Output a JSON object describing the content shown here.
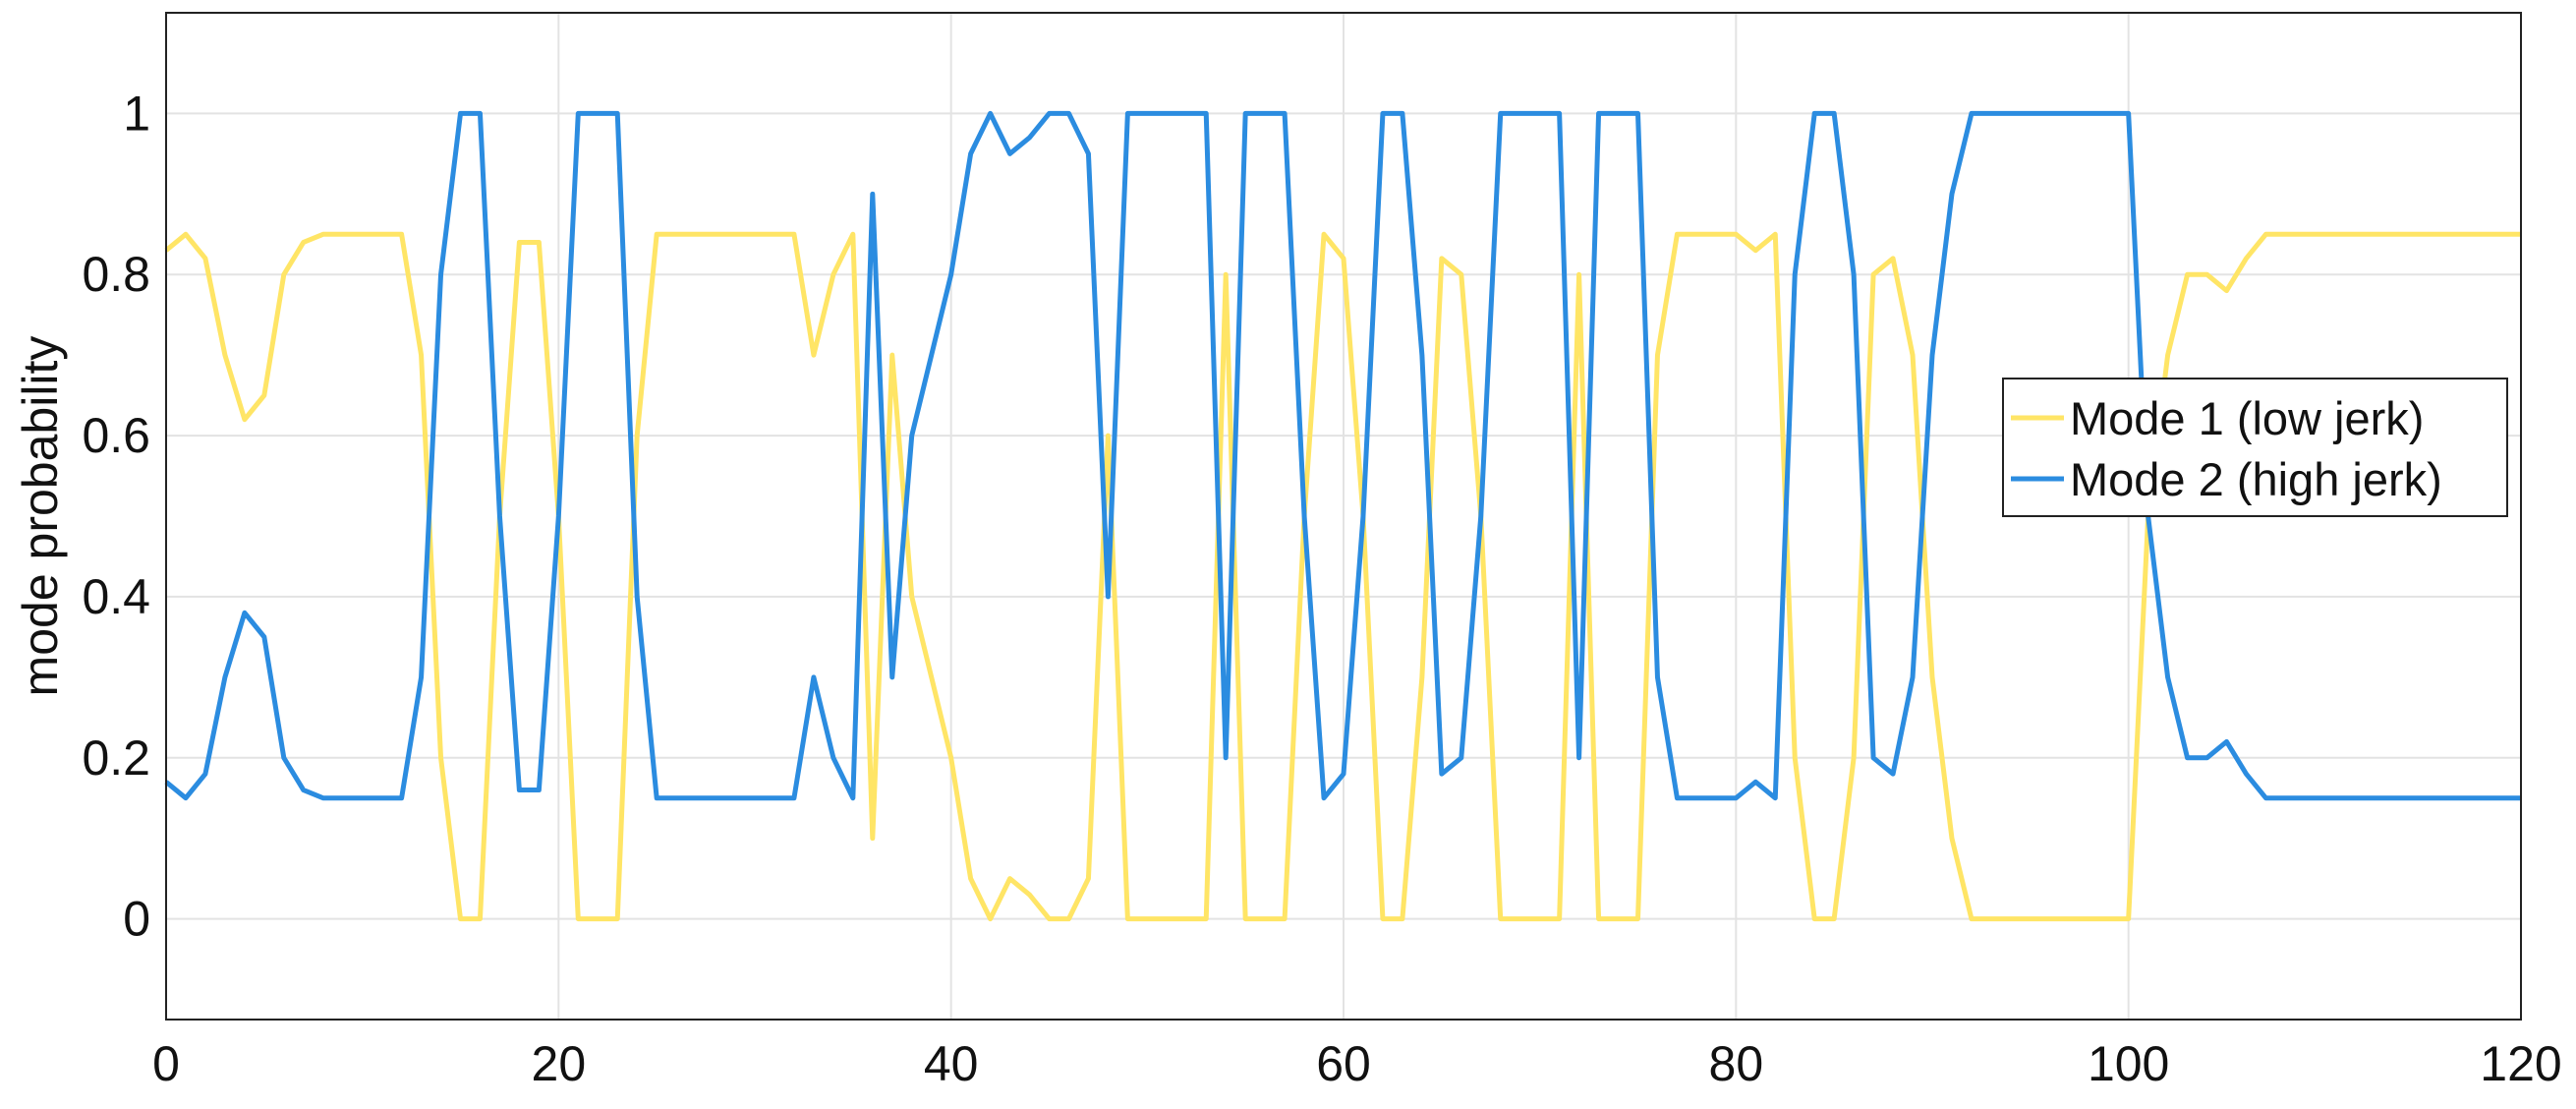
{
  "chart_data": {
    "type": "line",
    "ylabel": "mode probability",
    "x": [
      0,
      1,
      2,
      3,
      4,
      5,
      6,
      7,
      8,
      9,
      10,
      11,
      12,
      13,
      14,
      15,
      16,
      17,
      18,
      19,
      20,
      21,
      22,
      23,
      24,
      25,
      26,
      27,
      28,
      29,
      30,
      31,
      32,
      33,
      34,
      35,
      36,
      37,
      38,
      39,
      40,
      41,
      42,
      43,
      44,
      45,
      46,
      47,
      48,
      49,
      50,
      51,
      52,
      53,
      54,
      55,
      56,
      57,
      58,
      59,
      60,
      61,
      62,
      63,
      64,
      65,
      66,
      67,
      68,
      69,
      70,
      71,
      72,
      73,
      74,
      75,
      76,
      77,
      78,
      79,
      80,
      81,
      82,
      83,
      84,
      85,
      86,
      87,
      88,
      89,
      90,
      91,
      92,
      93,
      94,
      95,
      96,
      97,
      98,
      99,
      100,
      101,
      102,
      103,
      104,
      105,
      106,
      107,
      108,
      109,
      110,
      111,
      112,
      113,
      114,
      115,
      116,
      117,
      118,
      119,
      120
    ],
    "series": [
      {
        "name": "Mode 1 (low jerk)",
        "color": "#ffe566",
        "values": [
          0.83,
          0.85,
          0.82,
          0.7,
          0.62,
          0.65,
          0.8,
          0.84,
          0.85,
          0.85,
          0.85,
          0.85,
          0.85,
          0.7,
          0.2,
          0,
          0,
          0.5,
          0.84,
          0.84,
          0.5,
          0,
          0,
          0,
          0.6,
          0.85,
          0.85,
          0.85,
          0.85,
          0.85,
          0.85,
          0.85,
          0.85,
          0.7,
          0.8,
          0.85,
          0.1,
          0.7,
          0.4,
          0.3,
          0.2,
          0.05,
          0,
          0.05,
          0.03,
          0,
          0,
          0.05,
          0.6,
          0,
          0,
          0,
          0,
          0,
          0.8,
          0,
          0,
          0,
          0.5,
          0.85,
          0.82,
          0.5,
          0,
          0,
          0.3,
          0.82,
          0.8,
          0.5,
          0,
          0,
          0,
          0,
          0.8,
          0,
          0,
          0,
          0.7,
          0.85,
          0.85,
          0.85,
          0.85,
          0.83,
          0.85,
          0.2,
          0,
          0,
          0.2,
          0.8,
          0.82,
          0.7,
          0.3,
          0.1,
          0,
          0,
          0,
          0,
          0,
          0,
          0,
          0,
          0,
          0.5,
          0.7,
          0.8,
          0.8,
          0.78,
          0.82,
          0.85,
          0.85,
          0.85,
          0.85,
          0.85,
          0.85,
          0.85,
          0.85,
          0.85,
          0.85,
          0.85,
          0.85,
          0.85,
          0.85
        ]
      },
      {
        "name": "Mode 2 (high jerk)",
        "color": "#2b8ce0",
        "values": [
          0.17,
          0.15,
          0.18,
          0.3,
          0.38,
          0.35,
          0.2,
          0.16,
          0.15,
          0.15,
          0.15,
          0.15,
          0.15,
          0.3,
          0.8,
          1,
          1,
          0.5,
          0.16,
          0.16,
          0.5,
          1,
          1,
          1,
          0.4,
          0.15,
          0.15,
          0.15,
          0.15,
          0.15,
          0.15,
          0.15,
          0.15,
          0.3,
          0.2,
          0.15,
          0.9,
          0.3,
          0.6,
          0.7,
          0.8,
          0.95,
          1,
          0.95,
          0.97,
          1,
          1,
          0.95,
          0.4,
          1,
          1,
          1,
          1,
          1,
          0.2,
          1,
          1,
          1,
          0.5,
          0.15,
          0.18,
          0.5,
          1,
          1,
          0.7,
          0.18,
          0.2,
          0.5,
          1,
          1,
          1,
          1,
          0.2,
          1,
          1,
          1,
          0.3,
          0.15,
          0.15,
          0.15,
          0.15,
          0.17,
          0.15,
          0.8,
          1,
          1,
          0.8,
          0.2,
          0.18,
          0.3,
          0.7,
          0.9,
          1,
          1,
          1,
          1,
          1,
          1,
          1,
          1,
          1,
          0.5,
          0.3,
          0.2,
          0.2,
          0.22,
          0.18,
          0.15,
          0.15,
          0.15,
          0.15,
          0.15,
          0.15,
          0.15,
          0.15,
          0.15,
          0.15,
          0.15,
          0.15,
          0.15,
          0.15
        ]
      }
    ],
    "xlim": [
      0,
      120
    ],
    "xticks": [
      0,
      20,
      40,
      60,
      80,
      100,
      120
    ],
    "ylim": [
      -0.125,
      1.125
    ],
    "yticks": [
      0,
      0.2,
      0.4,
      0.6,
      0.8,
      1
    ],
    "grid": true,
    "legend": "east"
  }
}
